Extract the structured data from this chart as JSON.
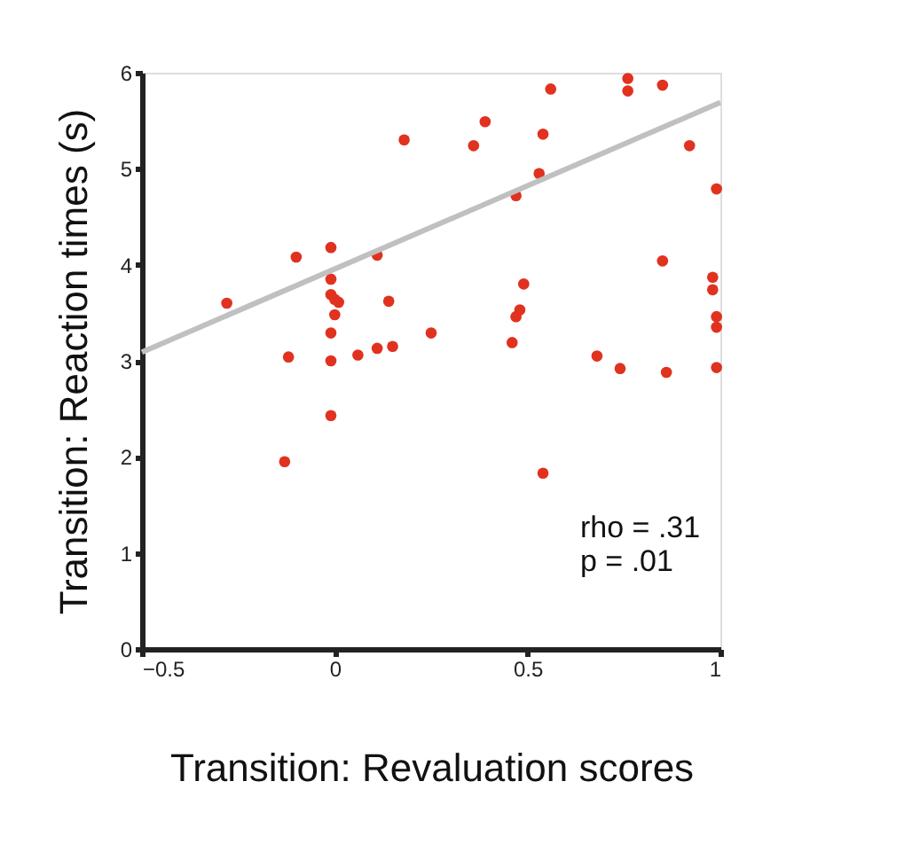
{
  "chart_data": {
    "type": "scatter",
    "xlabel": "Transition: Revaluation scores",
    "ylabel": "Transition: Reaction times (s)",
    "xlim": [
      -0.5,
      1
    ],
    "xticks": [
      -0.5,
      0,
      0.5,
      1
    ],
    "ylim": [
      0,
      6
    ],
    "yticks": [
      0,
      1,
      2,
      3,
      4,
      5,
      6
    ],
    "grid": false,
    "annotations": [
      "rho = .31",
      "p = .01"
    ],
    "series": [
      {
        "marker": "circle",
        "color": "#e0321e",
        "x": [
          -0.28,
          -0.1,
          -0.12,
          -0.13,
          -0.01,
          -0.01,
          -0.01,
          0.0,
          0.01,
          0.0,
          -0.01,
          -0.01,
          -0.01,
          0.06,
          0.11,
          0.11,
          0.14,
          0.15,
          0.18,
          0.25,
          0.36,
          0.39,
          0.56,
          0.54,
          0.53,
          0.47,
          0.49,
          0.48,
          0.47,
          0.46,
          0.54,
          0.76,
          0.76,
          0.85,
          0.92,
          0.99,
          0.85,
          0.98,
          0.98,
          0.99,
          0.99,
          0.99,
          0.68,
          0.74,
          0.86
        ],
        "values": [
          3.6,
          4.08,
          3.04,
          1.95,
          4.18,
          3.85,
          3.69,
          3.64,
          3.61,
          3.48,
          3.29,
          3.0,
          2.43,
          3.06,
          4.1,
          3.13,
          3.62,
          3.15,
          5.3,
          3.29,
          5.24,
          5.49,
          5.83,
          5.36,
          4.95,
          4.72,
          3.8,
          3.53,
          3.46,
          3.19,
          1.83,
          5.94,
          5.81,
          5.87,
          5.24,
          4.79,
          4.04,
          3.87,
          3.74,
          3.46,
          3.35,
          2.93,
          3.05,
          2.92,
          2.88
        ]
      },
      {
        "type": "line",
        "color": "#c0c0c0",
        "x": [
          -0.5,
          1
        ],
        "values": [
          3.09,
          5.69
        ]
      }
    ]
  }
}
